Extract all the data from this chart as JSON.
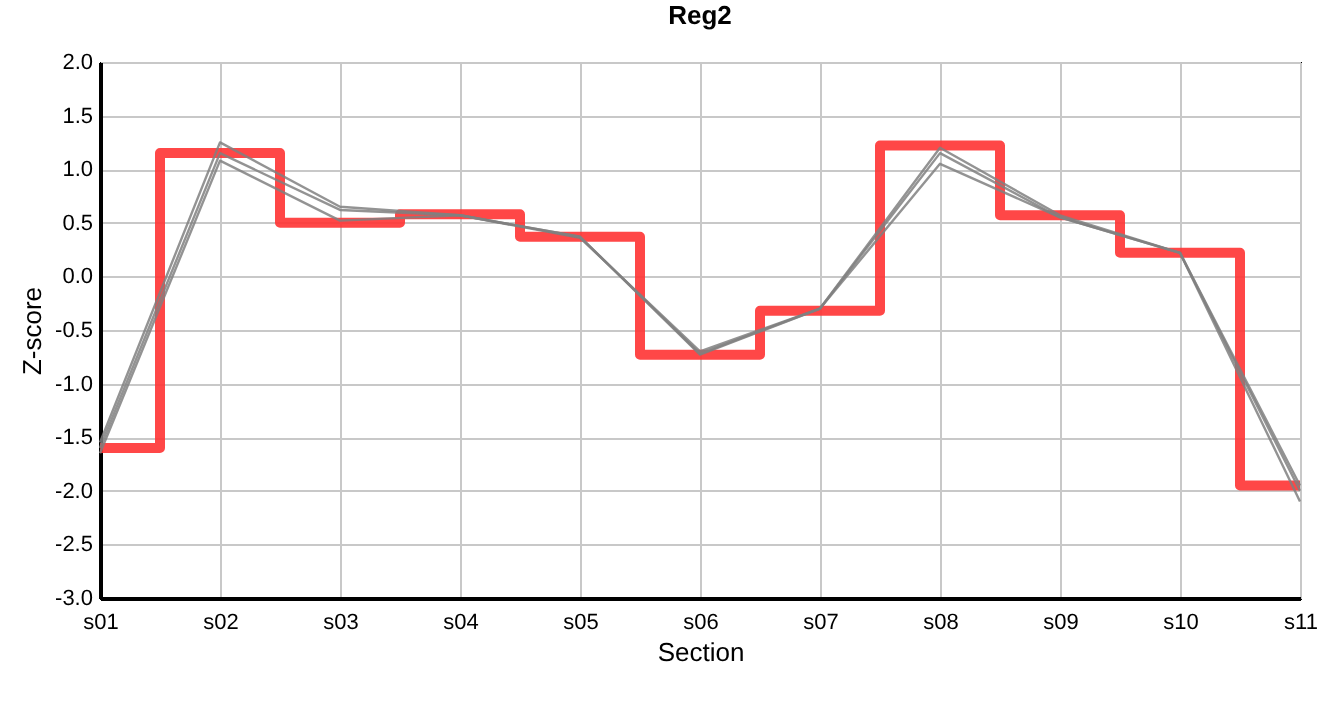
{
  "chart_data": {
    "type": "line",
    "title": "Reg2",
    "xlabel": "Section",
    "ylabel": "Z-score",
    "categories": [
      "s01",
      "s02",
      "s03",
      "s04",
      "s05",
      "s06",
      "s07",
      "s08",
      "s09",
      "s10",
      "s11"
    ],
    "series": [
      {
        "type": "step",
        "color": "#ff3333",
        "values": [
          -1.6,
          1.15,
          0.5,
          0.58,
          0.37,
          -0.73,
          -0.32,
          1.22,
          0.57,
          0.22,
          -1.95
        ]
      },
      {
        "type": "line",
        "color": "#808080",
        "values": [
          -1.55,
          1.25,
          0.65,
          0.57,
          0.37,
          -0.72,
          -0.3,
          1.2,
          0.57,
          0.22,
          -1.95
        ]
      },
      {
        "type": "line",
        "color": "#808080",
        "values": [
          -1.6,
          1.15,
          0.62,
          0.57,
          0.37,
          -0.73,
          -0.3,
          1.15,
          0.55,
          0.22,
          -2.0
        ]
      },
      {
        "type": "line",
        "color": "#808080",
        "values": [
          -1.65,
          1.08,
          0.52,
          0.57,
          0.36,
          -0.7,
          -0.3,
          1.05,
          0.55,
          0.22,
          -2.1
        ]
      }
    ],
    "ylim": [
      -3,
      2
    ],
    "yticks": [
      {
        "value": 2,
        "label": "2.0"
      },
      1.5,
      {
        "value": 1,
        "label": "1.0"
      },
      0.5,
      {
        "value": 0,
        "label": "0.0"
      },
      -0.5,
      {
        "value": -1,
        "label": "-1.0"
      },
      -1.5,
      {
        "value": -2,
        "label": "-2.0"
      },
      -2.5,
      {
        "value": -3,
        "label": "-3.0"
      }
    ],
    "grid": true,
    "marker": "none",
    "line_style": "solid"
  }
}
